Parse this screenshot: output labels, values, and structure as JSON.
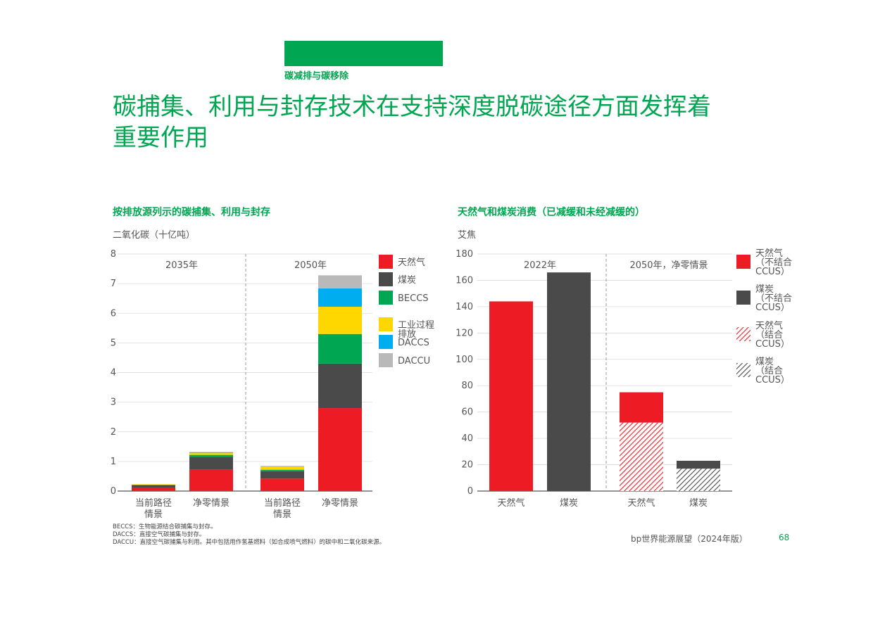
{
  "header": {
    "section_label": "碳减排与碳移除",
    "title_line1": "碳捕集、利用与封存技术在支持深度脱碳途径方面发挥着",
    "title_line2": "重要作用"
  },
  "colors": {
    "green": "#00a651",
    "natural_gas": "#ed1c24",
    "coal": "#4a4a4a",
    "beccs": "#00a651",
    "industrial": "#ffd700",
    "daccs": "#00aeef",
    "daccu": "#b9b9b9"
  },
  "chart_data": [
    {
      "type": "bar",
      "stacked": true,
      "title": "按排放源列示的碳捕集、利用与封存",
      "ylabel": "二氧化碳（十亿吨）",
      "ylim": [
        0,
        8
      ],
      "yticks": [
        "0",
        "1",
        "2",
        "3",
        "4",
        "5",
        "6",
        "7",
        "8"
      ],
      "groups": [
        "2035年",
        "2050年"
      ],
      "categories": [
        "当前路径\n情景",
        "净零情景",
        "当前路径\n情景",
        "净零情景"
      ],
      "category_group": [
        0,
        0,
        1,
        1
      ],
      "series": [
        {
          "name": "天然气",
          "color": "#ed1c24",
          "values": [
            0.12,
            0.72,
            0.42,
            2.8
          ]
        },
        {
          "name": "煤炭",
          "color": "#4a4a4a",
          "values": [
            0.08,
            0.43,
            0.25,
            1.5
          ]
        },
        {
          "name": "BECCS",
          "color": "#00a651",
          "values": [
            0.01,
            0.07,
            0.05,
            1.0
          ]
        },
        {
          "name": "工业过程\n排放",
          "color": "#ffd700",
          "values": [
            0.02,
            0.06,
            0.1,
            0.92
          ]
        },
        {
          "name": "DACCS",
          "color": "#00aeef",
          "values": [
            0,
            0.02,
            0,
            0.62
          ]
        },
        {
          "name": "DACCU",
          "color": "#b9b9b9",
          "values": [
            0,
            0.02,
            0.03,
            0.44
          ]
        }
      ],
      "grid": true,
      "legend_position": "right"
    },
    {
      "type": "bar",
      "stacked": true,
      "title": "天然气和煤炭消费（已减缓和未经减缓的）",
      "ylabel": "艾焦",
      "ylim": [
        0,
        180
      ],
      "yticks": [
        "0",
        "20",
        "40",
        "60",
        "80",
        "100",
        "120",
        "140",
        "160",
        "180"
      ],
      "groups": [
        "2022年",
        "2050年，净零情景"
      ],
      "categories": [
        "天然气",
        "煤炭",
        "天然气",
        "煤炭"
      ],
      "category_group": [
        0,
        0,
        1,
        1
      ],
      "series": [
        {
          "name": "天然气\n（结合\nCCUS）",
          "color": "#ed1c24",
          "hatched": true,
          "values": [
            0,
            0,
            52,
            0
          ]
        },
        {
          "name": "煤炭\n（结合\nCCUS）",
          "color": "#4a4a4a",
          "hatched": true,
          "values": [
            0,
            0,
            0,
            17
          ]
        },
        {
          "name": "天然气\n（不结合\nCCUS）",
          "color": "#ed1c24",
          "hatched": false,
          "values": [
            144,
            0,
            23,
            0
          ]
        },
        {
          "name": "煤炭\n（不结合\nCCUS）",
          "color": "#4a4a4a",
          "hatched": false,
          "values": [
            0,
            166,
            0,
            6
          ]
        }
      ],
      "legend_order": [
        2,
        3,
        0,
        1
      ],
      "grid": true,
      "legend_position": "right"
    }
  ],
  "notes": [
    "BECCS：生物能源结合碳捕集与封存。",
    "DACCS：直接空气碳捕集与封存。",
    "DACCU：直接空气碳捕集与利用。其中包括用作氢基燃料（如合成喷气燃料）的碳中和二氧化碳来源。"
  ],
  "footer": {
    "source": "bp世界能源展望（2024年版）",
    "page_number": "68"
  }
}
